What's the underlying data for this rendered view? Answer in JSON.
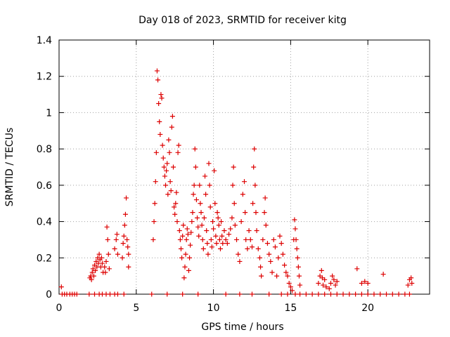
{
  "chart_data": {
    "type": "scatter",
    "title": "Day 018 of 2023, SRMTID for receiver kitg",
    "xlabel": "GPS time / hours",
    "ylabel": "SRMTID / TECUs",
    "xlim": [
      0,
      24
    ],
    "ylim": [
      0,
      1.4
    ],
    "x_ticks": [
      0,
      5,
      10,
      15,
      20
    ],
    "x_tick_labels": [
      "0",
      "5",
      "10",
      "15",
      "20"
    ],
    "y_ticks": [
      0,
      0.2,
      0.4,
      0.6,
      0.8,
      1.0,
      1.2,
      1.4
    ],
    "y_tick_labels": [
      "0",
      "0.2",
      "0.4",
      "0.6",
      "0.8",
      "1",
      "1.2",
      "1.4"
    ],
    "grid": true,
    "marker": "plus",
    "color": "#dd0000",
    "series": [
      {
        "name": "SRMTID",
        "points": [
          [
            0.15,
            0.04
          ],
          [
            0.2,
            0.0
          ],
          [
            0.35,
            0.0
          ],
          [
            0.5,
            0.0
          ],
          [
            0.7,
            0.0
          ],
          [
            0.85,
            0.0
          ],
          [
            1.0,
            0.0
          ],
          [
            1.15,
            0.0
          ],
          [
            1.95,
            0.0
          ],
          [
            2.0,
            0.09
          ],
          [
            2.05,
            0.1
          ],
          [
            2.1,
            0.08
          ],
          [
            2.15,
            0.12
          ],
          [
            2.2,
            0.14
          ],
          [
            2.25,
            0.1
          ],
          [
            2.3,
            0.16
          ],
          [
            2.35,
            0.13
          ],
          [
            2.4,
            0.18
          ],
          [
            2.45,
            0.15
          ],
          [
            2.5,
            0.2
          ],
          [
            2.55,
            0.17
          ],
          [
            2.6,
            0.22
          ],
          [
            2.65,
            0.19
          ],
          [
            2.7,
            0.15
          ],
          [
            2.75,
            0.2
          ],
          [
            2.8,
            0.17
          ],
          [
            2.85,
            0.12
          ],
          [
            2.3,
            0.0
          ],
          [
            2.6,
            0.0
          ],
          [
            2.8,
            0.0
          ],
          [
            2.95,
            0.15
          ],
          [
            3.0,
            0.12
          ],
          [
            3.05,
            0.18
          ],
          [
            3.1,
            0.37
          ],
          [
            3.15,
            0.3
          ],
          [
            3.2,
            0.22
          ],
          [
            3.25,
            0.14
          ],
          [
            3.05,
            0.0
          ],
          [
            3.3,
            0.0
          ],
          [
            3.6,
            0.0
          ],
          [
            3.8,
            0.0
          ],
          [
            3.6,
            0.25
          ],
          [
            3.7,
            0.3
          ],
          [
            3.75,
            0.33
          ],
          [
            3.8,
            0.22
          ],
          [
            4.1,
            0.2
          ],
          [
            4.15,
            0.28
          ],
          [
            4.2,
            0.32
          ],
          [
            4.25,
            0.38
          ],
          [
            4.3,
            0.44
          ],
          [
            4.35,
            0.53
          ],
          [
            4.4,
            0.3
          ],
          [
            4.45,
            0.26
          ],
          [
            4.5,
            0.22
          ],
          [
            4.5,
            0.15
          ],
          [
            4.2,
            0.0
          ],
          [
            6.0,
            0.0
          ],
          [
            6.1,
            0.3
          ],
          [
            6.15,
            0.4
          ],
          [
            6.2,
            0.5
          ],
          [
            6.25,
            0.62
          ],
          [
            6.3,
            0.78
          ],
          [
            6.35,
            1.23
          ],
          [
            6.4,
            1.18
          ],
          [
            6.45,
            1.05
          ],
          [
            6.5,
            0.95
          ],
          [
            6.55,
            0.88
          ],
          [
            6.6,
            1.1
          ],
          [
            6.65,
            1.08
          ],
          [
            6.7,
            0.82
          ],
          [
            6.75,
            0.75
          ],
          [
            6.8,
            0.7
          ],
          [
            6.85,
            0.65
          ],
          [
            6.9,
            0.6
          ],
          [
            6.95,
            0.68
          ],
          [
            7.0,
            0.72
          ],
          [
            7.05,
            0.55
          ],
          [
            7.1,
            0.85
          ],
          [
            7.15,
            0.78
          ],
          [
            7.2,
            0.62
          ],
          [
            7.25,
            0.57
          ],
          [
            7.3,
            0.92
          ],
          [
            7.35,
            0.98
          ],
          [
            7.4,
            0.7
          ],
          [
            7.45,
            0.48
          ],
          [
            7.5,
            0.44
          ],
          [
            7.55,
            0.5
          ],
          [
            7.6,
            0.56
          ],
          [
            7.65,
            0.4
          ],
          [
            7.7,
            0.78
          ],
          [
            7.75,
            0.82
          ],
          [
            7.8,
            0.35
          ],
          [
            7.85,
            0.3
          ],
          [
            7.9,
            0.25
          ],
          [
            7.95,
            0.2
          ],
          [
            8.0,
            0.32
          ],
          [
            8.05,
            0.38
          ],
          [
            8.1,
            0.09
          ],
          [
            8.15,
            0.15
          ],
          [
            8.2,
            0.22
          ],
          [
            8.25,
            0.3
          ],
          [
            8.3,
            0.36
          ],
          [
            8.35,
            0.33
          ],
          [
            8.4,
            0.13
          ],
          [
            8.45,
            0.2
          ],
          [
            8.5,
            0.27
          ],
          [
            8.55,
            0.34
          ],
          [
            8.6,
            0.4
          ],
          [
            8.65,
            0.45
          ],
          [
            8.7,
            0.55
          ],
          [
            8.75,
            0.6
          ],
          [
            8.8,
            0.8
          ],
          [
            8.85,
            0.7
          ],
          [
            8.9,
            0.52
          ],
          [
            8.95,
            0.42
          ],
          [
            9.0,
            0.37
          ],
          [
            9.05,
            0.32
          ],
          [
            9.1,
            0.6
          ],
          [
            9.15,
            0.5
          ],
          [
            9.2,
            0.45
          ],
          [
            9.25,
            0.38
          ],
          [
            9.3,
            0.3
          ],
          [
            9.35,
            0.25
          ],
          [
            9.4,
            0.42
          ],
          [
            9.45,
            0.65
          ],
          [
            9.5,
            0.55
          ],
          [
            9.55,
            0.35
          ],
          [
            9.6,
            0.28
          ],
          [
            9.65,
            0.22
          ],
          [
            9.7,
            0.72
          ],
          [
            9.75,
            0.6
          ],
          [
            9.8,
            0.48
          ],
          [
            9.85,
            0.3
          ],
          [
            9.9,
            0.26
          ],
          [
            9.95,
            0.4
          ],
          [
            10.0,
            0.36
          ],
          [
            10.05,
            0.68
          ],
          [
            10.1,
            0.5
          ],
          [
            10.15,
            0.32
          ],
          [
            10.2,
            0.28
          ],
          [
            10.25,
            0.45
          ],
          [
            10.3,
            0.42
          ],
          [
            10.35,
            0.38
          ],
          [
            10.4,
            0.3
          ],
          [
            10.45,
            0.25
          ],
          [
            10.5,
            0.4
          ],
          [
            10.55,
            0.32
          ],
          [
            10.6,
            0.28
          ],
          [
            10.7,
            0.35
          ],
          [
            10.8,
            0.3
          ],
          [
            10.9,
            0.28
          ],
          [
            11.0,
            0.33
          ],
          [
            11.1,
            0.36
          ],
          [
            11.2,
            0.42
          ],
          [
            11.25,
            0.6
          ],
          [
            11.3,
            0.7
          ],
          [
            11.35,
            0.5
          ],
          [
            11.4,
            0.38
          ],
          [
            11.5,
            0.3
          ],
          [
            11.6,
            0.22
          ],
          [
            11.7,
            0.18
          ],
          [
            11.8,
            0.4
          ],
          [
            11.9,
            0.55
          ],
          [
            12.0,
            0.62
          ],
          [
            12.05,
            0.45
          ],
          [
            12.1,
            0.3
          ],
          [
            12.2,
            0.25
          ],
          [
            12.3,
            0.35
          ],
          [
            12.4,
            0.3
          ],
          [
            12.5,
            0.26
          ],
          [
            12.55,
            0.5
          ],
          [
            12.6,
            0.7
          ],
          [
            12.65,
            0.8
          ],
          [
            12.7,
            0.6
          ],
          [
            12.75,
            0.45
          ],
          [
            12.8,
            0.35
          ],
          [
            12.9,
            0.25
          ],
          [
            13.0,
            0.2
          ],
          [
            13.05,
            0.15
          ],
          [
            13.1,
            0.1
          ],
          [
            13.2,
            0.3
          ],
          [
            13.3,
            0.45
          ],
          [
            13.35,
            0.53
          ],
          [
            13.4,
            0.38
          ],
          [
            13.5,
            0.28
          ],
          [
            13.6,
            0.22
          ],
          [
            13.7,
            0.18
          ],
          [
            13.8,
            0.12
          ],
          [
            13.9,
            0.3
          ],
          [
            14.0,
            0.26
          ],
          [
            14.1,
            0.1
          ],
          [
            14.2,
            0.2
          ],
          [
            14.3,
            0.32
          ],
          [
            14.4,
            0.28
          ],
          [
            14.5,
            0.22
          ],
          [
            14.6,
            0.16
          ],
          [
            14.7,
            0.12
          ],
          [
            14.8,
            0.1
          ],
          [
            14.9,
            0.06
          ],
          [
            15.0,
            0.04
          ],
          [
            15.1,
            0.02
          ],
          [
            15.2,
            0.3
          ],
          [
            15.25,
            0.41
          ],
          [
            15.3,
            0.36
          ],
          [
            15.35,
            0.3
          ],
          [
            15.4,
            0.25
          ],
          [
            15.45,
            0.2
          ],
          [
            15.5,
            0.15
          ],
          [
            15.55,
            0.1
          ],
          [
            15.6,
            0.05
          ],
          [
            7.0,
            0.0
          ],
          [
            8.0,
            0.0
          ],
          [
            9.0,
            0.0
          ],
          [
            10.8,
            0.0
          ],
          [
            11.7,
            0.0
          ],
          [
            12.5,
            0.0
          ],
          [
            13.6,
            0.0
          ],
          [
            14.4,
            0.0
          ],
          [
            14.8,
            0.0
          ],
          [
            15.3,
            0.0
          ],
          [
            15.6,
            0.0
          ],
          [
            16.0,
            0.0
          ],
          [
            16.4,
            0.0
          ],
          [
            16.8,
            0.0
          ],
          [
            17.2,
            0.0
          ],
          [
            17.6,
            0.0
          ],
          [
            18.0,
            0.0
          ],
          [
            18.4,
            0.0
          ],
          [
            18.8,
            0.0
          ],
          [
            19.2,
            0.0
          ],
          [
            19.6,
            0.0
          ],
          [
            20.0,
            0.0
          ],
          [
            20.4,
            0.0
          ],
          [
            20.8,
            0.0
          ],
          [
            21.2,
            0.0
          ],
          [
            21.6,
            0.0
          ],
          [
            22.0,
            0.0
          ],
          [
            22.4,
            0.0
          ],
          [
            22.7,
            0.0
          ],
          [
            16.8,
            0.06
          ],
          [
            16.9,
            0.1
          ],
          [
            17.0,
            0.13
          ],
          [
            17.05,
            0.09
          ],
          [
            17.1,
            0.05
          ],
          [
            17.2,
            0.08
          ],
          [
            17.3,
            0.04
          ],
          [
            17.5,
            0.03
          ],
          [
            17.6,
            0.06
          ],
          [
            17.7,
            0.1
          ],
          [
            17.8,
            0.08
          ],
          [
            17.9,
            0.05
          ],
          [
            18.0,
            0.07
          ],
          [
            19.3,
            0.14
          ],
          [
            19.6,
            0.06
          ],
          [
            19.8,
            0.07
          ],
          [
            20.0,
            0.06
          ],
          [
            21.0,
            0.11
          ],
          [
            22.6,
            0.05
          ],
          [
            22.7,
            0.08
          ],
          [
            22.8,
            0.09
          ],
          [
            22.85,
            0.06
          ]
        ]
      }
    ]
  }
}
